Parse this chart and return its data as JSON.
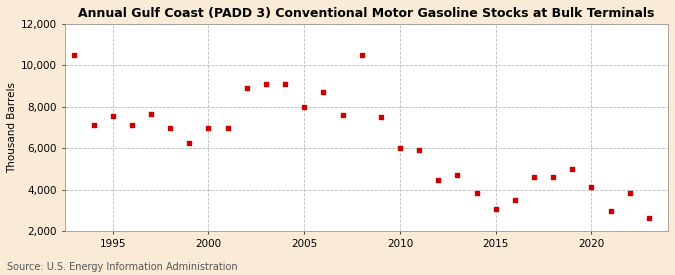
{
  "title": "Annual Gulf Coast (PADD 3) Conventional Motor Gasoline Stocks at Bulk Terminals",
  "ylabel": "Thousand Barrels",
  "source": "Source: U.S. Energy Information Administration",
  "background_color": "#faebd7",
  "plot_bg_color": "#ffffff",
  "marker_color": "#cc0000",
  "marker": "s",
  "marker_size": 3,
  "years": [
    1993,
    1994,
    1995,
    1996,
    1997,
    1998,
    1999,
    2000,
    2001,
    2002,
    2003,
    2004,
    2005,
    2006,
    2007,
    2008,
    2009,
    2010,
    2011,
    2012,
    2013,
    2014,
    2015,
    2016,
    2017,
    2018,
    2019,
    2020,
    2021,
    2022,
    2023
  ],
  "values": [
    10500,
    7100,
    7550,
    7100,
    7650,
    7000,
    6250,
    7000,
    7000,
    8900,
    9100,
    9100,
    8000,
    8700,
    7600,
    10500,
    7500,
    6000,
    5900,
    4450,
    4700,
    3850,
    3050,
    3500,
    4600,
    4600,
    5000,
    4150,
    2950,
    3850,
    2650
  ],
  "ylim": [
    2000,
    12000
  ],
  "yticks": [
    2000,
    4000,
    6000,
    8000,
    10000,
    12000
  ],
  "xlim": [
    1992.5,
    2024
  ],
  "xticks": [
    1995,
    2000,
    2005,
    2010,
    2015,
    2020
  ],
  "grid_color": "#bbbbbb",
  "grid_style": "--",
  "title_fontsize": 9,
  "label_fontsize": 7.5,
  "tick_fontsize": 7.5,
  "source_fontsize": 7
}
